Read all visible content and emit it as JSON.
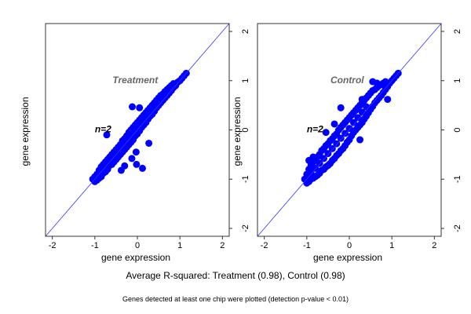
{
  "chart_data": [
    {
      "type": "scatter",
      "title": "Treatment",
      "annotation": "n=2",
      "xlabel": "gene expression",
      "ylabel": "gene expression",
      "xlim": [
        -2.16,
        2.16
      ],
      "ylim": [
        -2.16,
        2.16
      ],
      "xticks": [
        "-2",
        "-1",
        "0",
        "1",
        "2"
      ],
      "yticks": [
        "-2",
        "-1",
        "0",
        "1",
        "2"
      ],
      "reference_line": "y = x",
      "grid": false,
      "point_color": "#0000ff",
      "line_color": "#3333ff",
      "points": [
        [
          -1.05,
          -1.0
        ],
        [
          -1.0,
          -1.05
        ],
        [
          -1.0,
          -0.95
        ],
        [
          -0.95,
          -1.02
        ],
        [
          -0.95,
          -0.9
        ],
        [
          -0.9,
          -0.98
        ],
        [
          -0.9,
          -0.82
        ],
        [
          -0.85,
          -0.95
        ],
        [
          -0.85,
          -0.75
        ],
        [
          -0.8,
          -0.88
        ],
        [
          -0.8,
          -0.7
        ],
        [
          -0.75,
          -0.85
        ],
        [
          -0.75,
          -0.65
        ],
        [
          -0.7,
          -0.8
        ],
        [
          -0.7,
          -0.6
        ],
        [
          -0.65,
          -0.72
        ],
        [
          -0.65,
          -0.55
        ],
        [
          -0.6,
          -0.7
        ],
        [
          -0.6,
          -0.5
        ],
        [
          -0.55,
          -0.65
        ],
        [
          -0.55,
          -0.45
        ],
        [
          -0.5,
          -0.6
        ],
        [
          -0.5,
          -0.4
        ],
        [
          -0.45,
          -0.55
        ],
        [
          -0.45,
          -0.35
        ],
        [
          -0.4,
          -0.5
        ],
        [
          -0.4,
          -0.3
        ],
        [
          -0.35,
          -0.45
        ],
        [
          -0.35,
          -0.22
        ],
        [
          -0.3,
          -0.4
        ],
        [
          -0.3,
          -0.18
        ],
        [
          -0.25,
          -0.35
        ],
        [
          -0.25,
          -0.12
        ],
        [
          -0.2,
          -0.3
        ],
        [
          -0.2,
          -0.05
        ],
        [
          -0.15,
          -0.25
        ],
        [
          -0.15,
          0.0
        ],
        [
          -0.1,
          -0.2
        ],
        [
          -0.1,
          0.05
        ],
        [
          -0.05,
          -0.12
        ],
        [
          -0.05,
          0.1
        ],
        [
          0,
          -0.08
        ],
        [
          0,
          0.15
        ],
        [
          0.05,
          -0.02
        ],
        [
          0.05,
          0.2
        ],
        [
          0.1,
          0.05
        ],
        [
          0.1,
          0.25
        ],
        [
          0.15,
          0.1
        ],
        [
          0.15,
          0.3
        ],
        [
          0.2,
          0.15
        ],
        [
          0.2,
          0.35
        ],
        [
          0.25,
          0.22
        ],
        [
          0.25,
          0.4
        ],
        [
          0.3,
          0.28
        ],
        [
          0.3,
          0.45
        ],
        [
          0.35,
          0.32
        ],
        [
          0.35,
          0.5
        ],
        [
          0.4,
          0.38
        ],
        [
          0.4,
          0.55
        ],
        [
          0.45,
          0.45
        ],
        [
          0.45,
          0.6
        ],
        [
          0.5,
          0.5
        ],
        [
          0.5,
          0.65
        ],
        [
          0.55,
          0.55
        ],
        [
          0.55,
          0.7
        ],
        [
          0.6,
          0.6
        ],
        [
          0.6,
          0.73
        ],
        [
          0.65,
          0.65
        ],
        [
          0.65,
          0.78
        ],
        [
          0.7,
          0.7
        ],
        [
          0.7,
          0.82
        ],
        [
          0.75,
          0.75
        ],
        [
          0.75,
          0.86
        ],
        [
          0.8,
          0.8
        ],
        [
          0.8,
          0.9
        ],
        [
          0.85,
          0.86
        ],
        [
          0.85,
          0.94
        ],
        [
          0.9,
          0.9
        ],
        [
          0.95,
          0.97
        ],
        [
          1.0,
          1.0
        ],
        [
          1.05,
          1.05
        ],
        [
          1.1,
          1.1
        ],
        [
          1.15,
          1.15
        ],
        [
          -0.9,
          -0.9
        ],
        [
          -0.8,
          -0.8
        ],
        [
          -0.7,
          -0.7
        ],
        [
          -0.6,
          -0.6
        ],
        [
          -0.5,
          -0.5
        ],
        [
          -0.4,
          -0.4
        ],
        [
          -0.3,
          -0.3
        ],
        [
          -0.2,
          -0.18
        ],
        [
          -0.1,
          -0.08
        ],
        [
          0,
          0.03
        ],
        [
          0.1,
          0.15
        ],
        [
          0.2,
          0.25
        ],
        [
          0.3,
          0.36
        ],
        [
          -0.72,
          -0.1
        ],
        [
          0.27,
          -0.27
        ],
        [
          -0.03,
          -0.45
        ],
        [
          -0.13,
          -0.58
        ],
        [
          -0.02,
          -0.7
        ],
        [
          0.12,
          -0.78
        ],
        [
          -0.38,
          -0.82
        ],
        [
          -0.3,
          -0.73
        ],
        [
          0.05,
          0.45
        ],
        [
          -0.12,
          0.47
        ]
      ]
    },
    {
      "type": "scatter",
      "title": "Control",
      "annotation": "n=2",
      "xlabel": "gene expression",
      "ylabel": "gene expression",
      "xlim": [
        -2.16,
        2.16
      ],
      "ylim": [
        -2.16,
        2.16
      ],
      "xticks": [
        "-2",
        "-1",
        "0",
        "1",
        "2"
      ],
      "yticks": [
        "-2",
        "-1",
        "0",
        "1",
        "2"
      ],
      "reference_line": "y = x",
      "grid": false,
      "point_color": "#0000ff",
      "line_color": "#3333ff",
      "points": [
        [
          -1.05,
          -1.0
        ],
        [
          -1.0,
          -1.08
        ],
        [
          -1.0,
          -0.9
        ],
        [
          -0.95,
          -1.05
        ],
        [
          -0.95,
          -0.8
        ],
        [
          -0.9,
          -1.0
        ],
        [
          -0.9,
          -0.72
        ],
        [
          -0.85,
          -0.98
        ],
        [
          -0.85,
          -0.65
        ],
        [
          -0.8,
          -0.95
        ],
        [
          -0.8,
          -0.6
        ],
        [
          -0.75,
          -0.92
        ],
        [
          -0.75,
          -0.55
        ],
        [
          -0.7,
          -0.88
        ],
        [
          -0.7,
          -0.5
        ],
        [
          -0.65,
          -0.82
        ],
        [
          -0.65,
          -0.42
        ],
        [
          -0.6,
          -0.8
        ],
        [
          -0.6,
          -0.38
        ],
        [
          -0.55,
          -0.75
        ],
        [
          -0.55,
          -0.32
        ],
        [
          -0.5,
          -0.72
        ],
        [
          -0.5,
          -0.28
        ],
        [
          -0.45,
          -0.68
        ],
        [
          -0.45,
          -0.22
        ],
        [
          -0.4,
          -0.62
        ],
        [
          -0.4,
          -0.18
        ],
        [
          -0.35,
          -0.58
        ],
        [
          -0.35,
          -0.12
        ],
        [
          -0.3,
          -0.52
        ],
        [
          -0.3,
          -0.08
        ],
        [
          -0.25,
          -0.48
        ],
        [
          -0.25,
          0.0
        ],
        [
          -0.2,
          -0.42
        ],
        [
          -0.2,
          0.05
        ],
        [
          -0.15,
          -0.38
        ],
        [
          -0.15,
          0.1
        ],
        [
          -0.1,
          -0.32
        ],
        [
          -0.1,
          0.15
        ],
        [
          -0.05,
          -0.25
        ],
        [
          -0.05,
          0.2
        ],
        [
          0,
          -0.2
        ],
        [
          0,
          0.25
        ],
        [
          0.05,
          -0.12
        ],
        [
          0.05,
          0.3
        ],
        [
          0.1,
          -0.05
        ],
        [
          0.1,
          0.35
        ],
        [
          0.15,
          0.0
        ],
        [
          0.15,
          0.4
        ],
        [
          0.2,
          0.05
        ],
        [
          0.2,
          0.45
        ],
        [
          0.25,
          0.1
        ],
        [
          0.25,
          0.5
        ],
        [
          0.3,
          0.15
        ],
        [
          0.3,
          0.55
        ],
        [
          0.35,
          0.22
        ],
        [
          0.35,
          0.6
        ],
        [
          0.4,
          0.28
        ],
        [
          0.4,
          0.65
        ],
        [
          0.45,
          0.35
        ],
        [
          0.45,
          0.7
        ],
        [
          0.5,
          0.42
        ],
        [
          0.5,
          0.75
        ],
        [
          0.55,
          0.48
        ],
        [
          0.55,
          0.8
        ],
        [
          0.6,
          0.55
        ],
        [
          0.6,
          0.82
        ],
        [
          0.65,
          0.6
        ],
        [
          0.65,
          0.86
        ],
        [
          0.7,
          0.65
        ],
        [
          0.7,
          0.9
        ],
        [
          0.75,
          0.7
        ],
        [
          0.75,
          0.92
        ],
        [
          0.8,
          0.76
        ],
        [
          0.8,
          0.95
        ],
        [
          0.85,
          0.82
        ],
        [
          0.85,
          0.98
        ],
        [
          0.9,
          0.88
        ],
        [
          0.95,
          0.95
        ],
        [
          1.0,
          1.0
        ],
        [
          1.05,
          1.05
        ],
        [
          1.1,
          1.1
        ],
        [
          1.15,
          1.15
        ],
        [
          -0.9,
          -0.88
        ],
        [
          -0.8,
          -0.78
        ],
        [
          -0.7,
          -0.68
        ],
        [
          -0.6,
          -0.58
        ],
        [
          -0.5,
          -0.48
        ],
        [
          -0.4,
          -0.38
        ],
        [
          -0.3,
          -0.28
        ],
        [
          -0.2,
          -0.17
        ],
        [
          -0.1,
          -0.07
        ],
        [
          0,
          0.03
        ],
        [
          0.1,
          0.15
        ],
        [
          0.2,
          0.25
        ],
        [
          0.3,
          0.36
        ],
        [
          0.4,
          0.47
        ],
        [
          -0.2,
          0.45
        ],
        [
          0.3,
          0.62
        ],
        [
          0.65,
          0.95
        ],
        [
          -0.85,
          -0.55
        ],
        [
          -0.95,
          -0.62
        ],
        [
          0.25,
          -0.2
        ],
        [
          -0.35,
          0.12
        ],
        [
          0.9,
          0.62
        ],
        [
          0.55,
          0.98
        ],
        [
          -0.55,
          -0.05
        ]
      ]
    }
  ],
  "footer": {
    "summary": "Average R-squared: Treatment (0.98), Control (0.98)",
    "note": "Genes detected at least one chip were plotted (detection p-value < 0.01)"
  }
}
